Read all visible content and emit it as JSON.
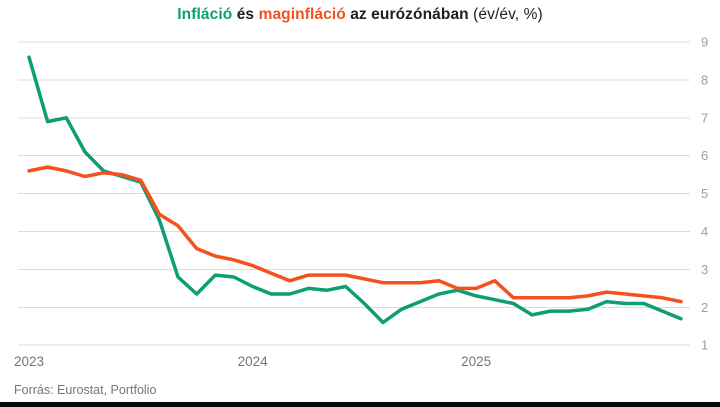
{
  "title": {
    "inflacio": "Infláció",
    "es": " és ",
    "maginflacio": "maginfláció",
    "rest": " az eurózónában ",
    "unit": "(év/év, %)"
  },
  "footer": {
    "source": "Forrás: Eurostat, Portfolio"
  },
  "colors": {
    "inflation_green": "#0d9e73",
    "core_orange": "#f4511e",
    "grid_line": "#dcdcdc",
    "y_tick_label": "#9e9e9e",
    "x_tick_label": "#757575",
    "source_text": "#757575",
    "bottom_bar": "#0a0a0a",
    "title_text": "#1e1e1e"
  },
  "chart_data": {
    "type": "line",
    "title": "Infláció és maginfláció az eurózónában (év/év, %)",
    "xlabel": "",
    "ylabel": "",
    "y_axis_side": "right",
    "ylim": [
      1,
      9
    ],
    "y_ticks": [
      1,
      2,
      3,
      4,
      5,
      6,
      7,
      8,
      9
    ],
    "grid": "horizontal-only",
    "legend": "in-title-colors",
    "x_months": [
      "2023-01",
      "2023-02",
      "2023-03",
      "2023-04",
      "2023-05",
      "2023-06",
      "2023-07",
      "2023-08",
      "2023-09",
      "2023-10",
      "2023-11",
      "2023-12",
      "2024-01",
      "2024-02",
      "2024-03",
      "2024-04",
      "2024-05",
      "2024-06",
      "2024-07",
      "2024-08",
      "2024-09",
      "2024-10",
      "2024-11",
      "2024-12",
      "2025-01",
      "2025-02",
      "2025-03",
      "2025-04",
      "2025-05",
      "2025-06",
      "2025-07",
      "2025-08",
      "2025-09",
      "2025-10",
      "2025-11",
      "2025-12"
    ],
    "x_tick_labels": [
      {
        "index": 0,
        "label": "2023"
      },
      {
        "index": 12,
        "label": "2024"
      },
      {
        "index": 24,
        "label": "2025"
      }
    ],
    "series": [
      {
        "name": "Infláció",
        "color": "#0d9e73",
        "values": [
          8.6,
          6.9,
          7.0,
          6.1,
          5.6,
          5.45,
          5.3,
          4.3,
          2.8,
          2.35,
          2.85,
          2.8,
          2.55,
          2.35,
          2.35,
          2.5,
          2.45,
          2.55,
          2.1,
          1.6,
          1.95,
          2.15,
          2.35,
          2.45,
          2.3,
          2.2,
          2.1,
          1.8,
          1.9,
          1.9,
          1.95,
          2.15,
          2.1,
          2.1,
          1.9,
          1.7
        ]
      },
      {
        "name": "maginfláció",
        "color": "#f4511e",
        "values": [
          5.6,
          5.7,
          5.6,
          5.45,
          5.55,
          5.5,
          5.35,
          4.45,
          4.15,
          3.55,
          3.35,
          3.25,
          3.1,
          2.9,
          2.7,
          2.85,
          2.85,
          2.85,
          2.75,
          2.65,
          2.65,
          2.65,
          2.7,
          2.5,
          2.5,
          2.7,
          2.25,
          2.25,
          2.25,
          2.25,
          2.3,
          2.4,
          2.35,
          2.3,
          2.25,
          2.15
        ]
      }
    ]
  }
}
